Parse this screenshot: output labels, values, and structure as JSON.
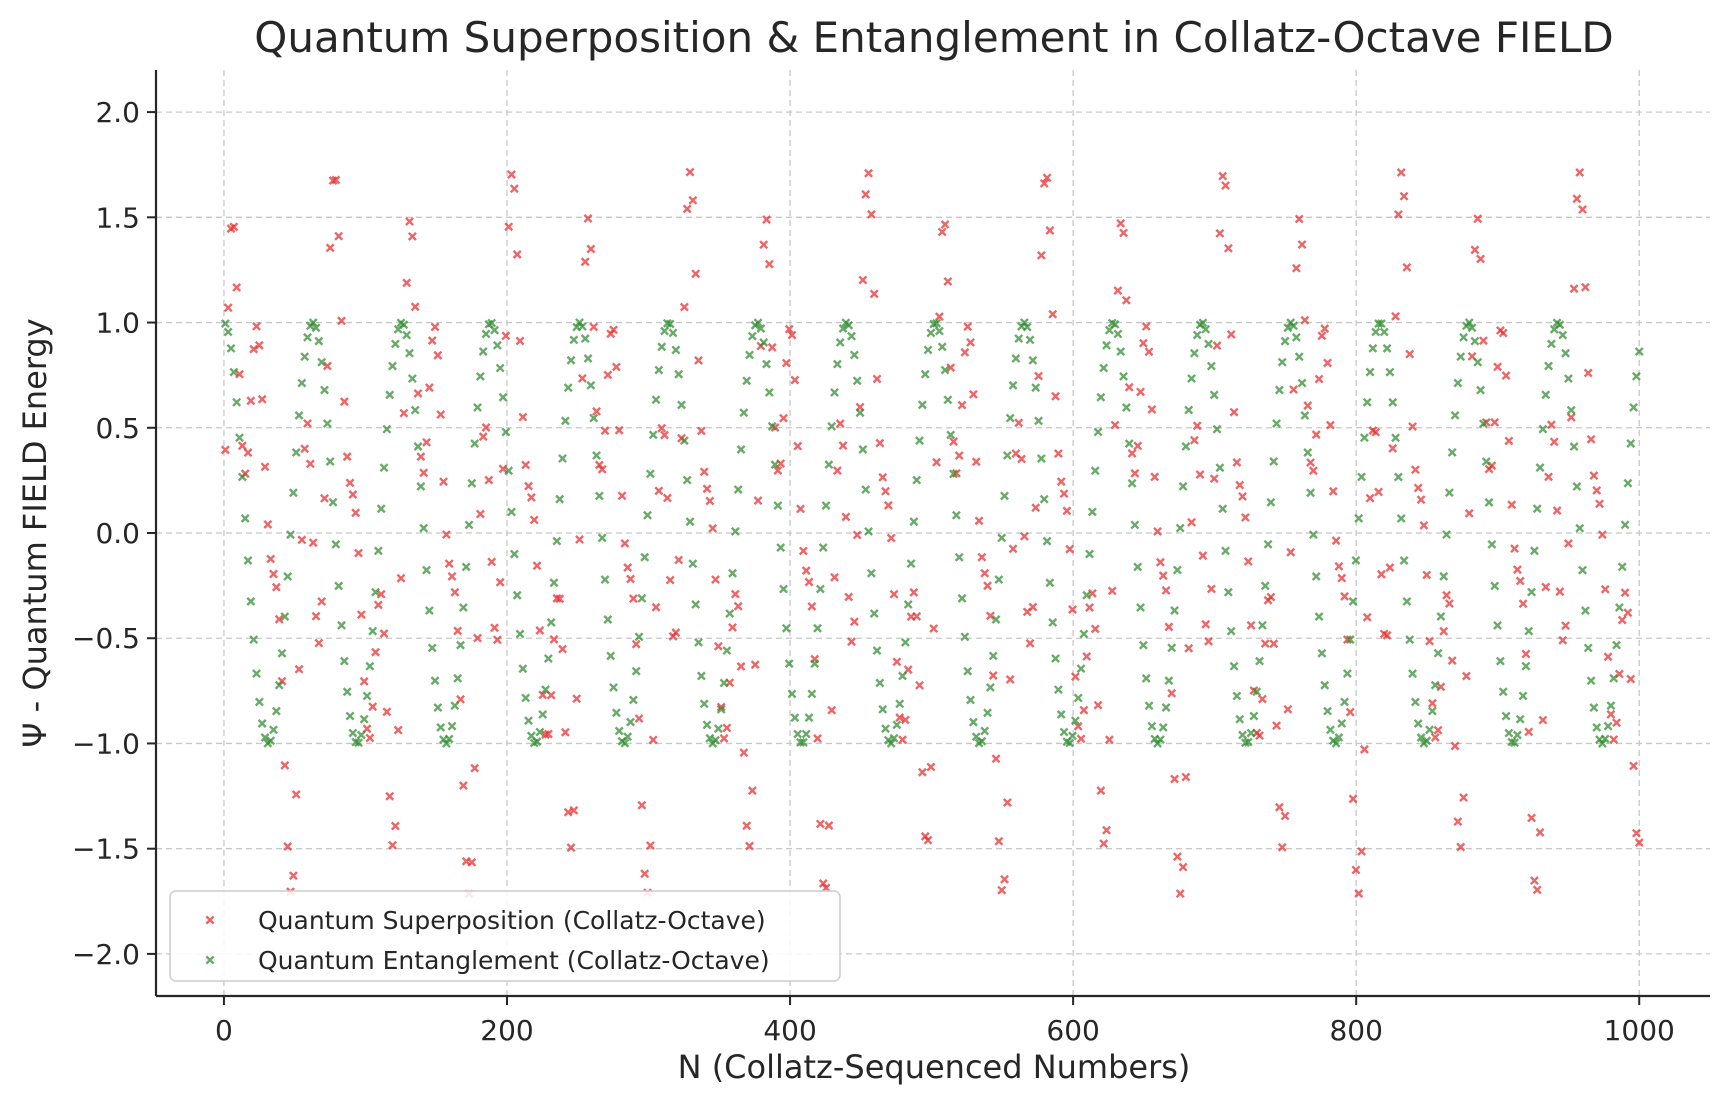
{
  "chart_data": {
    "type": "scatter",
    "title": "Quantum Superposition & Entanglement in Collatz-Octave FIELD",
    "xlabel": "N (Collatz-Sequenced Numbers)",
    "ylabel": "Ψ - Quantum FIELD Energy",
    "xlim": [
      -48,
      1050
    ],
    "ylim": [
      -2.2,
      2.2
    ],
    "xticks": [
      0,
      200,
      400,
      600,
      800,
      1000
    ],
    "yticks": [
      2.0,
      1.5,
      1.0,
      0.5,
      0.0,
      -0.5,
      -1.0,
      -1.5,
      -2.0
    ],
    "xtick_labels": [
      "0",
      "200",
      "400",
      "600",
      "800",
      "1000"
    ],
    "ytick_labels": [
      "2.0",
      "1.5",
      "1.0",
      "0.5",
      "0.0",
      "−0.5",
      "−1.0",
      "−1.5",
      "−2.0"
    ],
    "grid": true,
    "legend_position": "lower-left",
    "marker": "x",
    "x": {
      "start": 1,
      "end": 1000,
      "count": 500
    },
    "series": [
      {
        "name": "Quantum Superposition (Collatz-Octave)",
        "color": "#e8292b",
        "formula": "sin(0.1*N) + cos(0.05*N) * sin(0.3*N)"
      },
      {
        "name": "Quantum Entanglement (Collatz-Octave)",
        "color": "#2e8a2e",
        "formula": "cos(0.1*N)"
      }
    ]
  }
}
